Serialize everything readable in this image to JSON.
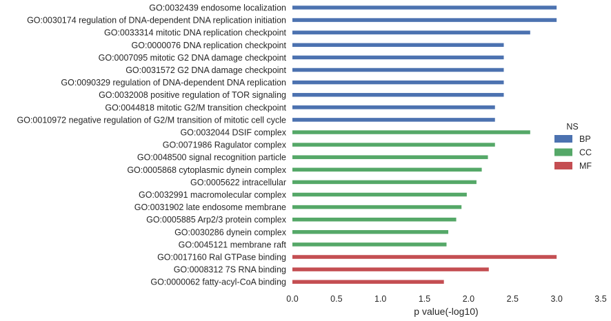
{
  "chart_data": {
    "type": "bar",
    "orientation": "horizontal",
    "xlabel": "p value(-log10)",
    "xlim": [
      0.0,
      3.5
    ],
    "xticks": [
      "0.0",
      "0.5",
      "1.0",
      "1.5",
      "2.0",
      "2.5",
      "3.0",
      "3.5"
    ],
    "grid": false,
    "legend": {
      "title": "NS",
      "placement": "right",
      "entries": [
        {
          "name": "BP",
          "color": "#4c72b0"
        },
        {
          "name": "CC",
          "color": "#55a868"
        },
        {
          "name": "MF",
          "color": "#c44e52"
        }
      ]
    },
    "bars": [
      {
        "label": "GO:0032439 endosome localization",
        "value": 3.0,
        "group": "BP"
      },
      {
        "label": "GO:0030174 regulation of DNA-dependent DNA replication initiation",
        "value": 3.0,
        "group": "BP"
      },
      {
        "label": "GO:0033314 mitotic DNA replication checkpoint",
        "value": 2.7,
        "group": "BP"
      },
      {
        "label": "GO:0000076 DNA replication checkpoint",
        "value": 2.4,
        "group": "BP"
      },
      {
        "label": "GO:0007095 mitotic G2 DNA damage checkpoint",
        "value": 2.4,
        "group": "BP"
      },
      {
        "label": "GO:0031572 G2 DNA damage checkpoint",
        "value": 2.4,
        "group": "BP"
      },
      {
        "label": "GO:0090329 regulation of DNA-dependent DNA replication",
        "value": 2.4,
        "group": "BP"
      },
      {
        "label": "GO:0032008 positive regulation of TOR signaling",
        "value": 2.4,
        "group": "BP"
      },
      {
        "label": "GO:0044818 mitotic G2/M transition checkpoint",
        "value": 2.3,
        "group": "BP"
      },
      {
        "label": "GO:0010972 negative regulation of G2/M transition of mitotic cell cycle",
        "value": 2.3,
        "group": "BP"
      },
      {
        "label": "GO:0032044 DSIF complex",
        "value": 2.7,
        "group": "CC"
      },
      {
        "label": "GO:0071986 Ragulator complex",
        "value": 2.3,
        "group": "CC"
      },
      {
        "label": "GO:0048500 signal recognition particle",
        "value": 2.22,
        "group": "CC"
      },
      {
        "label": "GO:0005868 cytoplasmic dynein complex",
        "value": 2.15,
        "group": "CC"
      },
      {
        "label": "GO:0005622 intracellular",
        "value": 2.09,
        "group": "CC"
      },
      {
        "label": "GO:0032991 macromolecular complex",
        "value": 1.98,
        "group": "CC"
      },
      {
        "label": "GO:0031902 late endosome membrane",
        "value": 1.92,
        "group": "CC"
      },
      {
        "label": "GO:0005885 Arp2/3 protein complex",
        "value": 1.86,
        "group": "CC"
      },
      {
        "label": "GO:0030286 dynein complex",
        "value": 1.77,
        "group": "CC"
      },
      {
        "label": "GO:0045121 membrane raft",
        "value": 1.75,
        "group": "CC"
      },
      {
        "label": "GO:0017160 Ral GTPase binding",
        "value": 3.0,
        "group": "MF"
      },
      {
        "label": "GO:0008312 7S RNA binding",
        "value": 2.23,
        "group": "MF"
      },
      {
        "label": "GO:0000062 fatty-acyl-CoA binding",
        "value": 1.72,
        "group": "MF"
      }
    ]
  }
}
